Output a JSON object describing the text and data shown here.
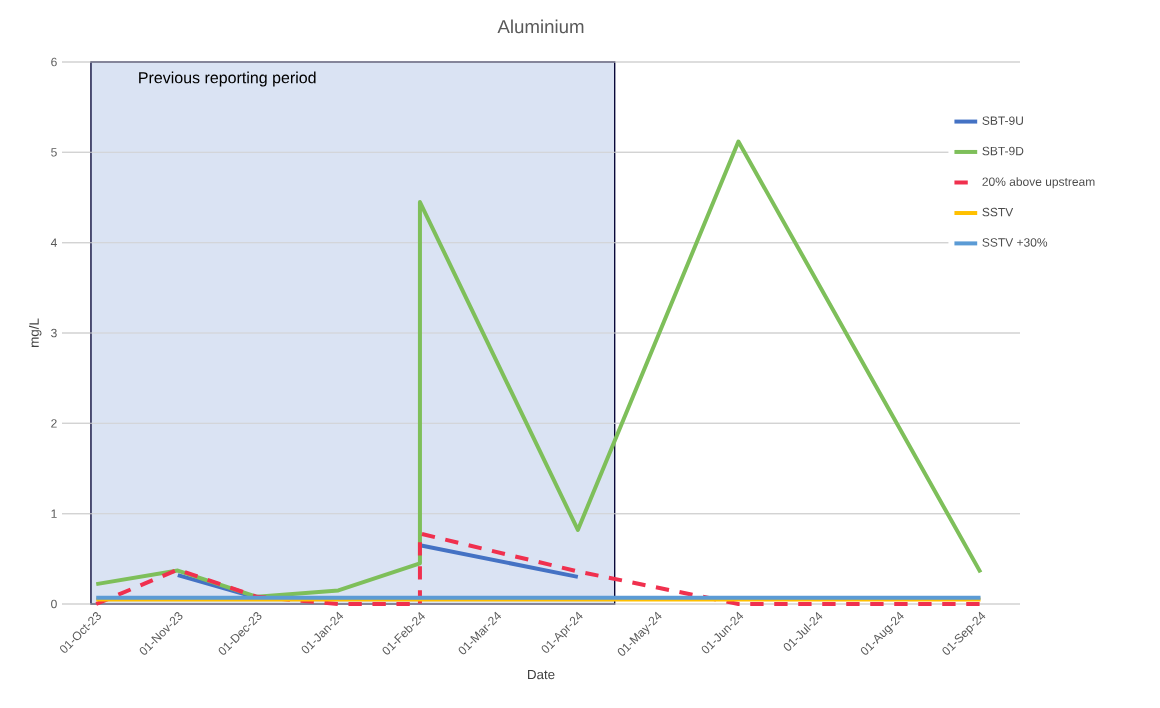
{
  "chart_data": {
    "type": "line",
    "title": "Aluminium",
    "xlabel": "Date",
    "ylabel": "mg/L",
    "xlim": [
      "2023-09-18",
      "2024-09-16"
    ],
    "ylim": [
      0,
      6
    ],
    "yticks": [
      0,
      1,
      2,
      3,
      4,
      5,
      6
    ],
    "xticks": [
      {
        "value": "2023-10-01",
        "label": "01-Oct-23"
      },
      {
        "value": "2023-11-01",
        "label": "01-Nov-23"
      },
      {
        "value": "2023-12-01",
        "label": "01-Dec-23"
      },
      {
        "value": "2024-01-01",
        "label": "01-Jan-24"
      },
      {
        "value": "2024-02-01",
        "label": "01-Feb-24"
      },
      {
        "value": "2024-03-01",
        "label": "01-Mar-24"
      },
      {
        "value": "2024-04-01",
        "label": "01-Apr-24"
      },
      {
        "value": "2024-05-01",
        "label": "01-May-24"
      },
      {
        "value": "2024-06-01",
        "label": "01-Jun-24"
      },
      {
        "value": "2024-07-01",
        "label": "01-Jul-24"
      },
      {
        "value": "2024-08-01",
        "label": "01-Aug-24"
      },
      {
        "value": "2024-09-01",
        "label": "01-Sep-24"
      }
    ],
    "grid": "y",
    "legend": "right",
    "bands": [
      {
        "axis": "x",
        "from": "2023-09-29",
        "to": "2024-04-15",
        "label": "Previous reporting period",
        "color": "#dae3f3"
      }
    ],
    "series": [
      {
        "name": "SBT-9U",
        "color": "#4472c4",
        "x": [
          "2023-11-01",
          "2023-12-01",
          "2024-01-01",
          "2024-02-01",
          "2024-04-01"
        ],
        "values": [
          0.32,
          0.07,
          null,
          0.65,
          0.3
        ]
      },
      {
        "name": "SBT-9D",
        "color": "#7ebf5a",
        "x": [
          "2023-10-01",
          "2023-11-01",
          "2023-12-01",
          "2024-01-01",
          "2024-02-01",
          "2024-02-01",
          "2024-04-01",
          "2024-06-01",
          "2024-09-01"
        ],
        "values": [
          0.22,
          0.37,
          0.08,
          0.15,
          0.45,
          4.45,
          0.82,
          5.12,
          0.35
        ]
      },
      {
        "name": "20% above upstream",
        "color": "#f0304e",
        "line_style": "dashed",
        "x": [
          "2023-10-01",
          "2023-11-01",
          "2023-12-01",
          "2024-01-01",
          "2024-02-01",
          "2024-02-01",
          "2024-04-01",
          "2024-06-01",
          "2024-07-01",
          "2024-08-01",
          "2024-09-01"
        ],
        "values": [
          0,
          0.38,
          0.08,
          0,
          0,
          0.78,
          0.36,
          0,
          0,
          0,
          0
        ]
      },
      {
        "name": "SSTV",
        "color": "#ffc000",
        "x": [
          "2023-10-01",
          "2024-09-01"
        ],
        "values": [
          0.05,
          0.05
        ]
      },
      {
        "name": "SSTV +30%",
        "color": "#5b9bd5",
        "x": [
          "2023-10-01",
          "2024-09-01"
        ],
        "values": [
          0.07,
          0.07
        ]
      }
    ]
  }
}
